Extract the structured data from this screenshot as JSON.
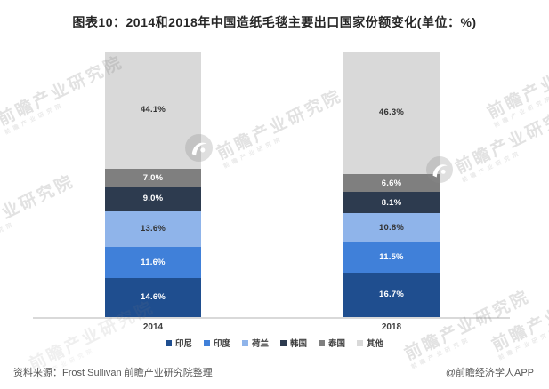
{
  "title": "图表10：2014和2018年中国造纸毛毯主要出口国家份额变化(单位：%)",
  "chart_data": {
    "type": "bar",
    "stacked": true,
    "unit": "%",
    "title": "图表10：2014和2018年中国造纸毛毯主要出口国家份额变化(单位：%)",
    "categories": [
      "2014",
      "2018"
    ],
    "series": [
      {
        "name": "印尼",
        "values": [
          14.6,
          16.7
        ],
        "color": "#1f4e8f",
        "label_color": "#ffffff"
      },
      {
        "name": "印度",
        "values": [
          11.6,
          11.5
        ],
        "color": "#4080d9",
        "label_color": "#ffffff"
      },
      {
        "name": "荷兰",
        "values": [
          13.6,
          10.8
        ],
        "color": "#8fb4ea",
        "label_color": "#333333"
      },
      {
        "name": "韩国",
        "values": [
          9.0,
          8.1
        ],
        "color": "#2d3b4f",
        "label_color": "#ffffff"
      },
      {
        "name": "泰国",
        "values": [
          7.0,
          6.6
        ],
        "color": "#7f7f7f",
        "label_color": "#ffffff"
      },
      {
        "name": "其他",
        "values": [
          44.1,
          46.3
        ],
        "color": "#d9d9d9",
        "label_color": "#333333"
      }
    ],
    "ylim": [
      0,
      100
    ],
    "grid": false,
    "legend_position": "bottom",
    "axis_color": "#d9d9d9"
  },
  "watermark": {
    "text": "前瞻产业研究院"
  },
  "footer": {
    "source": "资料来源：Frost Sullivan 前瞻产业研究院整理",
    "credit": "@前瞻经济学人APP"
  }
}
